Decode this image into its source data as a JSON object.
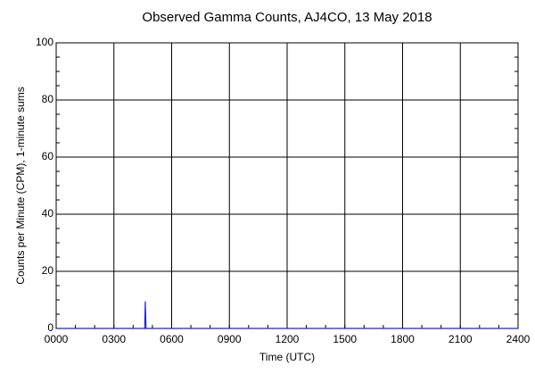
{
  "chart_data": {
    "type": "line",
    "title": "Observed Gamma Counts, AJ4CO, 13 May 2018",
    "x_label": "Time (UTC)",
    "y_label": "Counts per Minute (CPM), 1-minute sums",
    "x": [
      0,
      4.6,
      4.63,
      4.67,
      24
    ],
    "series": [
      {
        "name": "Gamma counts",
        "color": "#2222cc",
        "values": [
          0,
          0,
          9.5,
          0,
          0
        ]
      }
    ],
    "xlim": [
      0,
      24
    ],
    "xticks": [
      {
        "value": 0,
        "label": "0000"
      },
      {
        "value": 3,
        "label": "0300"
      },
      {
        "value": 6,
        "label": "0600"
      },
      {
        "value": 9,
        "label": "0900"
      },
      {
        "value": 12,
        "label": "1200"
      },
      {
        "value": 15,
        "label": "1500"
      },
      {
        "value": 18,
        "label": "1800"
      },
      {
        "value": 21,
        "label": "2100"
      },
      {
        "value": 24,
        "label": "2400"
      }
    ],
    "ylim": [
      0,
      100
    ],
    "yticks": [
      0,
      20,
      40,
      60,
      80,
      100
    ],
    "x_minor_step": 1,
    "y_minor_step": 5,
    "grid": true
  }
}
